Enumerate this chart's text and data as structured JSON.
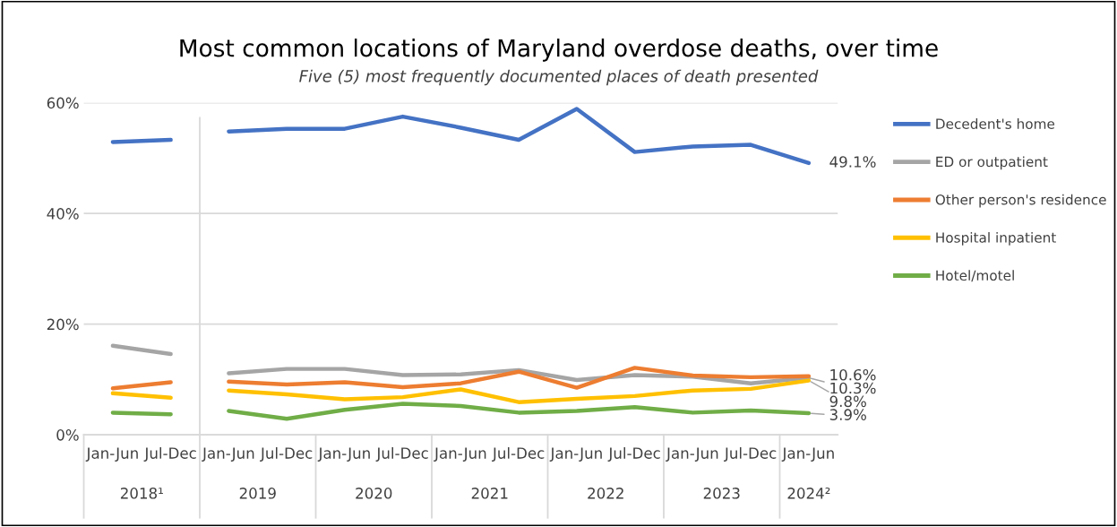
{
  "chart_data": {
    "type": "line",
    "title": "Most common locations of Maryland overdose deaths, over time",
    "subtitle": "Five (5) most frequently documented places of death presented",
    "categories": [
      "Jan-Jun",
      "Jul-Dec",
      "Jan-Jun",
      "Jul-Dec",
      "Jan-Jun",
      "Jul-Dec",
      "Jan-Jun",
      "Jul-Dec",
      "Jan-Jun",
      "Jul-Dec",
      "Jan-Jun",
      "Jul-Dec",
      "Jan-Jun"
    ],
    "annotations": [
      "2018¹",
      "2019",
      "2020",
      "2021",
      "2022",
      "2023",
      "2024²"
    ],
    "series": [
      {
        "name": "Decedent's home",
        "color": "#4472c4",
        "values": [
          null,
          null,
          54.8,
          55.3,
          55.3,
          57.5,
          55.5,
          53.3,
          58.9,
          51.1,
          52.1,
          52.4,
          49.1
        ],
        "value_labels": [
          null,
          null,
          null,
          null,
          null,
          null,
          null,
          null,
          null,
          null,
          null,
          null,
          "49.1%"
        ]
      },
      {
        "name": "ED or outpatient",
        "color": "#a5a5a5",
        "values": [
          null,
          null,
          11.1,
          11.9,
          11.9,
          10.8,
          10.9,
          11.7,
          9.9,
          10.8,
          10.5,
          9.3,
          10.3
        ],
        "value_labels": [
          null,
          null,
          null,
          null,
          null,
          null,
          null,
          null,
          null,
          null,
          null,
          null,
          "10.3%"
        ]
      },
      {
        "name": "Other person's residence",
        "color": "#ed7d31",
        "values": [
          null,
          null,
          9.6,
          9.1,
          9.5,
          8.6,
          9.3,
          11.4,
          8.5,
          12.1,
          10.7,
          10.4,
          10.6
        ],
        "value_labels": [
          null,
          null,
          null,
          null,
          null,
          null,
          null,
          null,
          null,
          null,
          null,
          null,
          "10.6%"
        ]
      },
      {
        "name": "Hospital inpatient",
        "color": "#ffc000",
        "values": [
          null,
          null,
          8.0,
          7.3,
          6.4,
          6.8,
          8.2,
          5.9,
          6.5,
          7.0,
          8.0,
          8.3,
          9.8
        ],
        "value_labels": [
          null,
          null,
          null,
          null,
          null,
          null,
          null,
          null,
          null,
          null,
          null,
          null,
          "9.8%"
        ]
      },
      {
        "name": "Hotel/motel",
        "color": "#70ad47",
        "values": [
          null,
          null,
          4.3,
          2.9,
          4.5,
          5.6,
          5.2,
          4.0,
          4.3,
          5.0,
          4.0,
          4.4,
          3.9
        ],
        "value_labels": [
          null,
          null,
          null,
          null,
          null,
          null,
          null,
          null,
          null,
          null,
          null,
          null,
          "3.9%"
        ]
      },
      {
        "color": "#4472c4",
        "values": [
          52.9,
          53.3,
          null,
          null,
          null,
          null,
          null,
          null,
          null,
          null,
          null,
          null,
          null
        ]
      },
      {
        "color": "#a5a5a5",
        "values": [
          16.1,
          14.6,
          null,
          null,
          null,
          null,
          null,
          null,
          null,
          null,
          null,
          null,
          null
        ]
      },
      {
        "color": "#ed7d31",
        "values": [
          8.4,
          9.5,
          null,
          null,
          null,
          null,
          null,
          null,
          null,
          null,
          null,
          null,
          null
        ]
      },
      {
        "color": "#ffc000",
        "values": [
          7.5,
          6.7,
          null,
          null,
          null,
          null,
          null,
          null,
          null,
          null,
          null,
          null,
          null
        ]
      },
      {
        "color": "#70ad47",
        "values": [
          4.0,
          3.7,
          null,
          null,
          null,
          null,
          null,
          null,
          null,
          null,
          null,
          null,
          null
        ]
      }
    ],
    "ylim": [
      0,
      60
    ],
    "yticks": [
      {
        "value": 0,
        "label": "0%"
      },
      {
        "value": 20,
        "label": "20%"
      },
      {
        "value": 40,
        "label": "40%"
      },
      {
        "value": 60,
        "label": "60%"
      }
    ],
    "grid": "y",
    "legend": "right",
    "line_style": "solid",
    "marker": "none"
  }
}
